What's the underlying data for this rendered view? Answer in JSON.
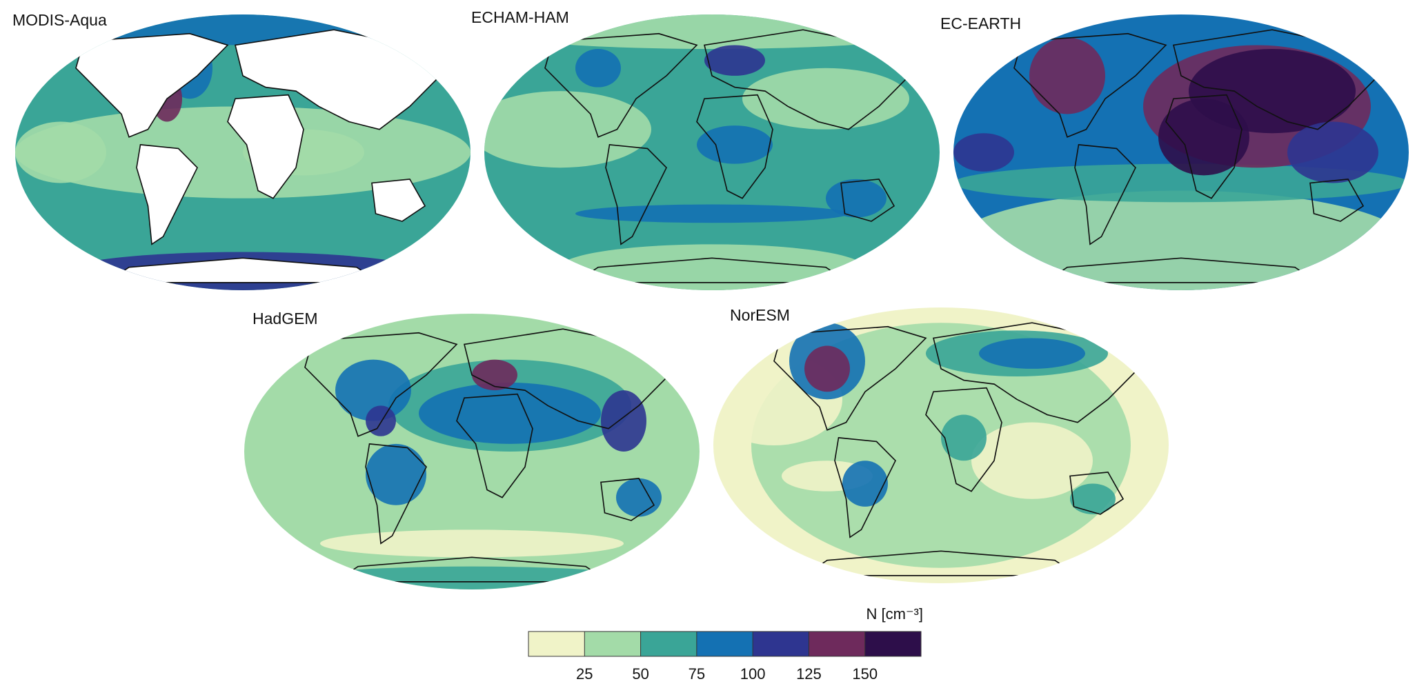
{
  "panels": [
    {
      "title": "MODIS-Aqua"
    },
    {
      "title": "ECHAM-HAM"
    },
    {
      "title": "EC-EARTH"
    },
    {
      "title": "HadGEM"
    },
    {
      "title": "NorESM"
    }
  ],
  "colorbar": {
    "label": "N [cm⁻³]",
    "colors": [
      "#f0f3c8",
      "#a3dba8",
      "#3aa597",
      "#1471b3",
      "#2e3590",
      "#6e2a5c",
      "#2d0e4a"
    ],
    "lim": [
      0,
      175
    ],
    "ticks": [
      25,
      50,
      75,
      100,
      125,
      150
    ]
  }
}
